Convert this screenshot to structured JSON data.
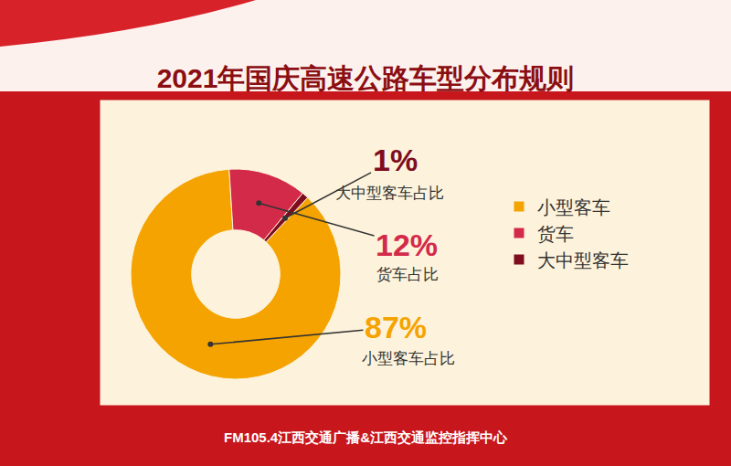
{
  "chart_data": {
    "type": "pie",
    "title": "2021年国庆高速公路车型分布规则",
    "categories": [
      "小型客车",
      "货车",
      "大中型客车"
    ],
    "values": [
      87,
      12,
      1
    ],
    "value_labels": [
      "87%",
      "12%",
      "1%"
    ],
    "slice_labels": [
      "小型客车占比",
      "货车占比",
      "大中型客车占比"
    ],
    "colors": [
      "#f5a300",
      "#d42a4a",
      "#7e0d1f"
    ],
    "legend": "right",
    "source": "FM105.4江西交通广播&江西交通监控指挥中心"
  }
}
